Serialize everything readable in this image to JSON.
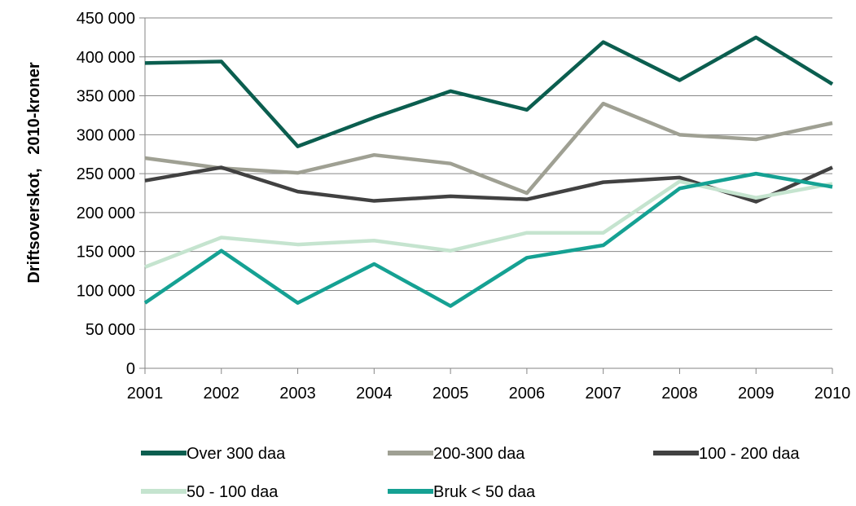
{
  "chart_data": {
    "type": "line",
    "title": "",
    "xlabel": "",
    "ylabel": "Driftsoverskot,   2010-kroner",
    "x": [
      "2001",
      "2002",
      "2003",
      "2004",
      "2005",
      "2006",
      "2007",
      "2008",
      "2009",
      "2010"
    ],
    "ylim": [
      0,
      450000
    ],
    "yticks": [
      0,
      50000,
      100000,
      150000,
      200000,
      250000,
      300000,
      350000,
      400000,
      450000
    ],
    "ytick_labels": [
      "0",
      "50 000",
      "100 000",
      "150 000",
      "200 000",
      "250 000",
      "300 000",
      "350 000",
      "400 000",
      "450 000"
    ],
    "grid": "horizontal",
    "legend_position": "bottom",
    "series": [
      {
        "name": "Over 300 daa",
        "color": "#0b5e4f",
        "values": [
          392000,
          394000,
          285000,
          322000,
          356000,
          332000,
          419000,
          370000,
          425000,
          365000
        ]
      },
      {
        "name": "200-300 daa",
        "color": "#9fa093",
        "values": [
          270000,
          257000,
          251000,
          274000,
          263000,
          225000,
          340000,
          300000,
          294000,
          315000
        ]
      },
      {
        "name": "100 - 200 daa",
        "color": "#414141",
        "values": [
          241000,
          258000,
          227000,
          215000,
          221000,
          217000,
          239000,
          245000,
          214000,
          258000
        ]
      },
      {
        "name": "50 - 100 daa",
        "color": "#c5e4cf",
        "values": [
          130000,
          168000,
          159000,
          164000,
          151000,
          174000,
          174000,
          240000,
          219000,
          237000
        ]
      },
      {
        "name": "Bruk < 50 daa",
        "color": "#15a193",
        "values": [
          84000,
          151000,
          84000,
          134000,
          80000,
          142000,
          158000,
          231000,
          250000,
          233000
        ]
      }
    ]
  }
}
